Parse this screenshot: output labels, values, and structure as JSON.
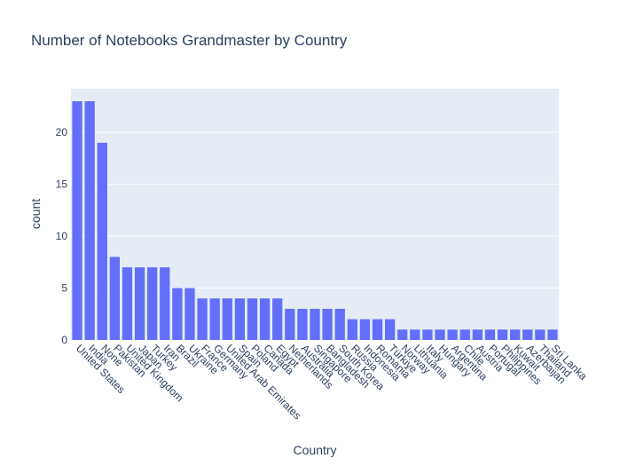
{
  "chart_data": {
    "type": "bar",
    "title": "Number of Notebooks Grandmaster by Country",
    "xlabel": "Country",
    "ylabel": "count",
    "ylim": [
      0,
      24.2
    ],
    "yticks": [
      0,
      5,
      10,
      15,
      20
    ],
    "grid": true,
    "bar_color": "#636efa",
    "plot_bg": "#e5ecf6",
    "categories": [
      "United States",
      "India",
      "None",
      "Pakistan",
      "United Kingdom",
      "Japan",
      "Turkey",
      "Iran",
      "Brazil",
      "Ukraine",
      "France",
      "Germany",
      "United Arab Emirates",
      "Spain",
      "Poland",
      "Canada",
      "Egypt",
      "Netherlands",
      "Australia",
      "Singapore",
      "Bangladesh",
      "South Korea",
      "Russia",
      "Indonesia",
      "Romania",
      "Türkiye",
      "Norway",
      "Lithuania",
      "Italy",
      "Hungary",
      "Argentina",
      "Chile",
      "Austria",
      "Portugal",
      "Philippines",
      "Kuwait",
      "Azerbaijan",
      "Thailand",
      "Sri Lanka"
    ],
    "values": [
      23,
      23,
      19,
      8,
      7,
      7,
      7,
      7,
      5,
      5,
      4,
      4,
      4,
      4,
      4,
      4,
      4,
      3,
      3,
      3,
      3,
      3,
      2,
      2,
      2,
      2,
      1,
      1,
      1,
      1,
      1,
      1,
      1,
      1,
      1,
      1,
      1,
      1,
      1
    ]
  }
}
